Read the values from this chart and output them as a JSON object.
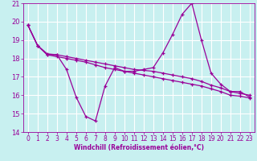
{
  "xlabel": "Windchill (Refroidissement éolien,°C)",
  "xlim": [
    -0.5,
    23.5
  ],
  "ylim": [
    14,
    21
  ],
  "yticks": [
    14,
    15,
    16,
    17,
    18,
    19,
    20,
    21
  ],
  "xticks": [
    0,
    1,
    2,
    3,
    4,
    5,
    6,
    7,
    8,
    9,
    10,
    11,
    12,
    13,
    14,
    15,
    16,
    17,
    18,
    19,
    20,
    21,
    22,
    23
  ],
  "background_color": "#c8f0f0",
  "grid_color": "#a0d8d8",
  "line_color": "#990099",
  "series1_x": [
    0,
    1,
    2,
    3,
    4,
    5,
    6,
    7,
    8,
    9,
    10,
    11,
    12,
    13,
    14,
    15,
    16,
    17,
    18,
    19,
    20,
    21,
    22,
    23
  ],
  "series1_y": [
    19.8,
    18.7,
    18.2,
    18.2,
    17.4,
    15.9,
    14.85,
    14.6,
    16.5,
    17.5,
    17.3,
    17.3,
    17.4,
    17.5,
    18.3,
    19.3,
    20.4,
    21.0,
    19.0,
    17.2,
    16.6,
    16.2,
    16.2,
    15.9
  ],
  "series2_x": [
    0,
    1,
    2,
    3,
    4,
    5,
    6,
    7,
    8,
    9,
    10,
    11,
    12,
    13,
    14,
    15,
    16,
    17,
    18,
    19,
    20,
    21,
    22,
    23
  ],
  "series2_y": [
    19.8,
    18.7,
    18.25,
    18.2,
    18.1,
    18.0,
    17.9,
    17.8,
    17.7,
    17.6,
    17.5,
    17.4,
    17.35,
    17.3,
    17.2,
    17.1,
    17.0,
    16.9,
    16.75,
    16.55,
    16.4,
    16.2,
    16.1,
    16.0
  ],
  "series3_x": [
    0,
    1,
    2,
    3,
    4,
    5,
    6,
    7,
    8,
    9,
    10,
    11,
    12,
    13,
    14,
    15,
    16,
    17,
    18,
    19,
    20,
    21,
    22,
    23
  ],
  "series3_y": [
    19.8,
    18.7,
    18.2,
    18.1,
    18.0,
    17.9,
    17.8,
    17.65,
    17.5,
    17.4,
    17.3,
    17.2,
    17.1,
    17.0,
    16.9,
    16.8,
    16.7,
    16.6,
    16.5,
    16.35,
    16.2,
    16.0,
    15.95,
    15.85
  ]
}
